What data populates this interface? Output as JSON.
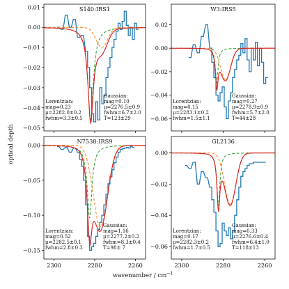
{
  "figure": {
    "ylabel": "optical depth",
    "xlabel": "wavenumber / cm",
    "xlabel_superscript": "−1"
  },
  "colors": {
    "data": "#1f77b4",
    "fit": "#d62728",
    "lorentzian": "#2ca02c",
    "gaussian": "#ff7f0e",
    "axes": "#111111"
  },
  "chart_data": [
    {
      "type": "line",
      "title": "S140:IRS1",
      "xlim": [
        2305,
        2255
      ],
      "ylim": [
        -0.0515,
        0.0115
      ],
      "xticks": [
        2300,
        2280,
        2260
      ],
      "xtick_labels": [
        "2300",
        "2280",
        "2260"
      ],
      "show_xtick_labels": false,
      "yticks": [
        0.01,
        0.0,
        -0.01,
        -0.02,
        -0.03,
        -0.04,
        -0.05
      ],
      "ytick_labels": [
        "0.01",
        "0.00",
        "−0.01",
        "−0.02",
        "−0.03",
        "−0.04",
        "−0.05"
      ],
      "annotations": [
        {
          "lines": [
            "Lorentzian:",
            "mag=0.23",
            "μ=2282.0±0.2",
            "fwhm=3.3±0.5"
          ]
        },
        {
          "lines": [
            "Gaussian:",
            "mag=0.10",
            "μ=2276.5±0.9",
            "fwhm=6.7±2.0",
            "T=123±29"
          ]
        }
      ],
      "lorentzian": {
        "mag": 0.23,
        "mu": 2282.0,
        "fwhm": 3.3
      },
      "gaussian": {
        "mag": 0.1,
        "mu": 2276.5,
        "fwhm": 6.7,
        "T": 123
      },
      "data_series": {
        "x": [
          2298,
          2296,
          2294,
          2292,
          2290,
          2288,
          2286,
          2284,
          2283,
          2282,
          2281,
          2280,
          2279,
          2278,
          2277,
          2276,
          2275,
          2274,
          2273,
          2272,
          2271,
          2270,
          2269,
          2268,
          2267,
          2266,
          2265,
          2264,
          2263,
          2262,
          2261,
          2260,
          2259
        ],
        "y": [
          0.0,
          -0.001,
          0.006,
          0.0,
          0.004,
          -0.005,
          -0.004,
          -0.012,
          -0.02,
          -0.03,
          -0.043,
          -0.047,
          -0.037,
          -0.046,
          -0.03,
          -0.038,
          -0.034,
          -0.025,
          -0.02,
          -0.015,
          -0.01,
          -0.006,
          -0.002,
          0.002,
          -0.001,
          0.003,
          0.008,
          0.001,
          -0.004,
          0.0,
          -0.006,
          0.002,
          -0.001
        ]
      }
    },
    {
      "type": "line",
      "title": "W3:IRS5",
      "xlim": [
        2305,
        2255
      ],
      "ylim": [
        -0.0705,
        0.0375
      ],
      "xticks": [
        2300,
        2280,
        2260
      ],
      "xtick_labels": [
        "2300",
        "2280",
        "2260"
      ],
      "show_xtick_labels": false,
      "yticks": [
        0.02,
        0.0,
        -0.02,
        -0.04,
        -0.06
      ],
      "ytick_labels": [
        "0.02",
        "0.00",
        "−0.02",
        "−0.04",
        "−0.06"
      ],
      "annotations": [
        {
          "lines": [
            "Lorentzian:",
            "mag=0.15",
            "μ=2283.1±0.2",
            "fwhm=1.5±1.1"
          ]
        },
        {
          "lines": [
            "Gaussian:",
            "mag=0.27",
            "μ=2278.9±0.9",
            "fwhm=5.7±2.0",
            "T=44±28"
          ]
        }
      ],
      "lorentzian": {
        "mag": 0.15,
        "mu": 2283.1,
        "fwhm": 1.5
      },
      "gaussian": {
        "mag": 0.27,
        "mu": 2278.9,
        "fwhm": 5.7,
        "T": 44
      },
      "data_series": {
        "x": [
          2296,
          2294,
          2292,
          2290,
          2288,
          2286,
          2285,
          2284,
          2283,
          2282,
          2281,
          2280,
          2279,
          2278,
          2277,
          2276,
          2275,
          2274,
          2273,
          2272,
          2271,
          2270,
          2269,
          2268,
          2267,
          2266,
          2265,
          2264,
          2263,
          2262,
          2261,
          2260,
          2259
        ],
        "y": [
          -0.008,
          0.003,
          -0.004,
          0.01,
          0.02,
          0.0,
          -0.012,
          -0.025,
          -0.04,
          -0.045,
          -0.038,
          -0.033,
          -0.05,
          -0.06,
          -0.045,
          -0.038,
          -0.025,
          -0.018,
          -0.01,
          -0.006,
          0.004,
          -0.004,
          0.008,
          -0.01,
          -0.02,
          0.0,
          -0.01,
          0.005,
          -0.015,
          0.0,
          -0.012,
          -0.03,
          -0.025
        ]
      }
    },
    {
      "type": "line",
      "title": "N7538:IRS9",
      "xlim": [
        2305,
        2255
      ],
      "ylim": [
        -0.1625,
        0.0125
      ],
      "xticks": [
        2300,
        2280,
        2260
      ],
      "xtick_labels": [
        "2300",
        "2280",
        "2260"
      ],
      "show_xtick_labels": true,
      "yticks": [
        0.0,
        -0.05,
        -0.1,
        -0.15
      ],
      "ytick_labels": [
        "0.00",
        "−0.05",
        "−0.10",
        "−0.15"
      ],
      "annotations": [
        {
          "lines": [
            "Lorentzian:",
            "mag=0.52",
            "μ=2282.5±0.1",
            "fwhm=2.8±0.3"
          ]
        },
        {
          "lines": [
            "Gaussian:",
            "mag=1.16",
            "μ=2277.2±0.2",
            "fwhm=8.3±0.4",
            "T=98± 7"
          ]
        }
      ],
      "lorentzian": {
        "mag": 0.52,
        "mu": 2282.5,
        "fwhm": 2.8
      },
      "gaussian": {
        "mag": 1.16,
        "mu": 2277.2,
        "fwhm": 8.3,
        "T": 98
      },
      "data_series": {
        "x": [
          2298,
          2296,
          2294,
          2292,
          2290,
          2288,
          2287,
          2286,
          2285,
          2284,
          2283,
          2282,
          2281,
          2280,
          2279,
          2278,
          2277,
          2276,
          2275,
          2274,
          2273,
          2272,
          2271,
          2270,
          2269,
          2268,
          2267,
          2266,
          2265,
          2264,
          2263,
          2262,
          2261
        ],
        "y": [
          -0.002,
          -0.006,
          -0.003,
          -0.01,
          -0.004,
          -0.01,
          -0.02,
          -0.03,
          -0.05,
          -0.085,
          -0.13,
          -0.15,
          -0.145,
          -0.14,
          -0.13,
          -0.12,
          -0.11,
          -0.1,
          -0.085,
          -0.07,
          -0.055,
          -0.045,
          -0.035,
          -0.025,
          -0.017,
          -0.01,
          -0.006,
          -0.005,
          -0.004,
          -0.003,
          -0.004,
          -0.002,
          -0.003
        ]
      }
    },
    {
      "type": "line",
      "title": "GL2136",
      "xlim": [
        2305,
        2255
      ],
      "ylim": [
        -0.068,
        0.0105
      ],
      "xticks": [
        2300,
        2280,
        2260
      ],
      "xtick_labels": [
        "2300",
        "2280",
        "2260"
      ],
      "show_xtick_labels": true,
      "yticks": [
        0.0,
        -0.02,
        -0.04,
        -0.06
      ],
      "ytick_labels": [
        "0.00",
        "−0.02",
        "−0.04",
        "−0.06"
      ],
      "annotations": [
        {
          "lines": [
            "Lorentzian:",
            "mag=0.17",
            "μ=2282.3±0.2",
            "fwhm=1.7±0.5"
          ]
        },
        {
          "lines": [
            "Gaussian:",
            "mag=0.33",
            "μ=2276.6±0.4",
            "fwhm=6.4±1.0",
            "T=118±13"
          ]
        }
      ],
      "lorentzian": {
        "mag": 0.17,
        "mu": 2282.3,
        "fwhm": 1.7
      },
      "gaussian": {
        "mag": 0.33,
        "mu": 2276.6,
        "fwhm": 6.4,
        "T": 118
      },
      "data_series": {
        "x": [
          2298,
          2296,
          2294,
          2292,
          2290,
          2288,
          2286,
          2285,
          2284,
          2283,
          2282,
          2281,
          2280,
          2279,
          2278,
          2277,
          2276,
          2275,
          2274,
          2273,
          2272,
          2271,
          2270,
          2269,
          2268,
          2267,
          2266,
          2265,
          2264,
          2263,
          2262,
          2261,
          2260
        ],
        "y": [
          -0.008,
          -0.01,
          -0.006,
          -0.02,
          -0.012,
          -0.016,
          -0.022,
          -0.03,
          -0.038,
          -0.05,
          -0.06,
          -0.058,
          -0.045,
          -0.05,
          -0.053,
          -0.048,
          -0.055,
          -0.05,
          -0.04,
          -0.03,
          -0.022,
          -0.015,
          -0.012,
          -0.01,
          -0.008,
          -0.007,
          -0.007,
          -0.006,
          -0.006,
          -0.006,
          -0.006,
          -0.006,
          -0.006
        ]
      }
    }
  ]
}
